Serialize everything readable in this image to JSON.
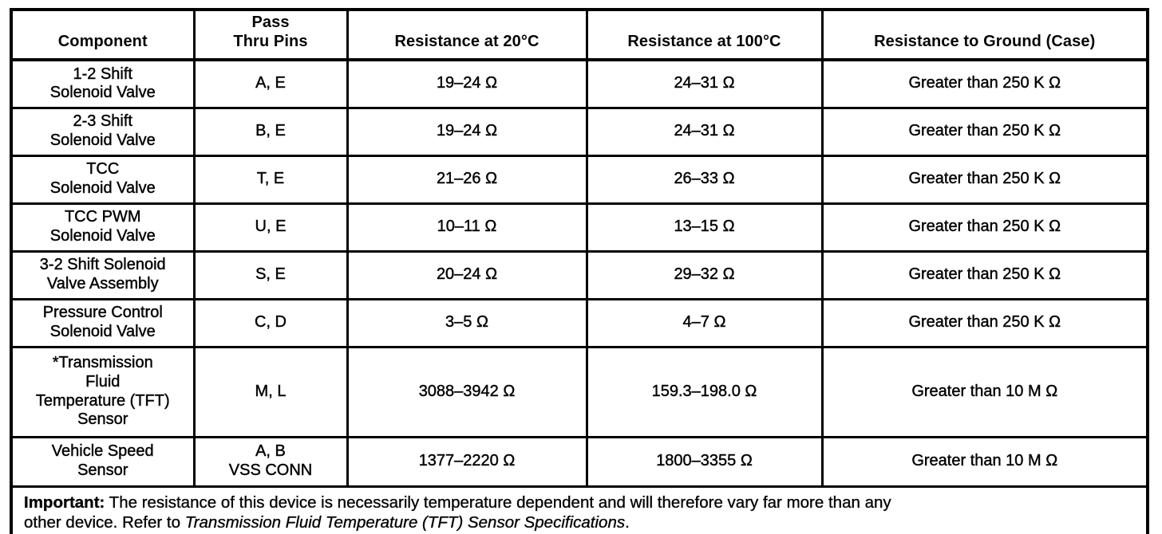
{
  "table": {
    "columns": [
      {
        "lines": [
          "Component"
        ]
      },
      {
        "lines": [
          "Pass",
          "Thru Pins"
        ]
      },
      {
        "lines": [
          "Resistance at 20°C"
        ]
      },
      {
        "lines": [
          "Resistance at 100°C"
        ]
      },
      {
        "lines": [
          "Resistance to Ground (Case)"
        ]
      }
    ],
    "rows": [
      {
        "component": [
          "1-2 Shift",
          "Solenoid Valve"
        ],
        "pins": [
          "A, E"
        ],
        "r20": "19–24 Ω",
        "r100": "24–31 Ω",
        "ground": "Greater than 250 K Ω"
      },
      {
        "component": [
          "2-3 Shift",
          "Solenoid Valve"
        ],
        "pins": [
          "B, E"
        ],
        "r20": "19–24 Ω",
        "r100": "24–31 Ω",
        "ground": "Greater than 250 K Ω"
      },
      {
        "component": [
          "TCC",
          "Solenoid Valve"
        ],
        "pins": [
          "T, E"
        ],
        "r20": "21–26 Ω",
        "r100": "26–33 Ω",
        "ground": "Greater than 250 K Ω"
      },
      {
        "component": [
          "TCC PWM",
          "Solenoid Valve"
        ],
        "pins": [
          "U, E"
        ],
        "r20": "10–11 Ω",
        "r100": "13–15 Ω",
        "ground": "Greater than 250 K Ω"
      },
      {
        "component": [
          "3-2 Shift Solenoid",
          "Valve Assembly"
        ],
        "pins": [
          "S, E"
        ],
        "r20": "20–24 Ω",
        "r100": "29–32 Ω",
        "ground": "Greater than 250 K Ω"
      },
      {
        "component": [
          "Pressure Control",
          "Solenoid Valve"
        ],
        "pins": [
          "C, D"
        ],
        "r20": "3–5 Ω",
        "r100": "4–7 Ω",
        "ground": "Greater than 250 K Ω"
      },
      {
        "component": [
          "*Transmission",
          "Fluid",
          "Temperature (TFT)",
          "Sensor"
        ],
        "pins": [
          "M, L"
        ],
        "r20": "3088–3942 Ω",
        "r100": "159.3–198.0 Ω",
        "ground": "Greater than 10 M Ω",
        "tall": true
      },
      {
        "component": [
          "Vehicle Speed",
          "Sensor"
        ],
        "pins": [
          "A, B",
          "VSS CONN"
        ],
        "r20": "1377–2220 Ω",
        "r100": "1800–3355 Ω",
        "ground": "Greater than 10 M Ω",
        "vss": true
      }
    ],
    "note": {
      "label": "Important:",
      "line1_text": " The resistance of this device is necessarily temperature dependent and will therefore vary far more than any",
      "line2_text": "other device. Refer to ",
      "line2_italic": "Transmission Fluid Temperature (TFT) Sensor Specifications",
      "line2_suffix": "."
    }
  },
  "colors": {
    "ink": "#050505",
    "paper": "#ffffff"
  }
}
